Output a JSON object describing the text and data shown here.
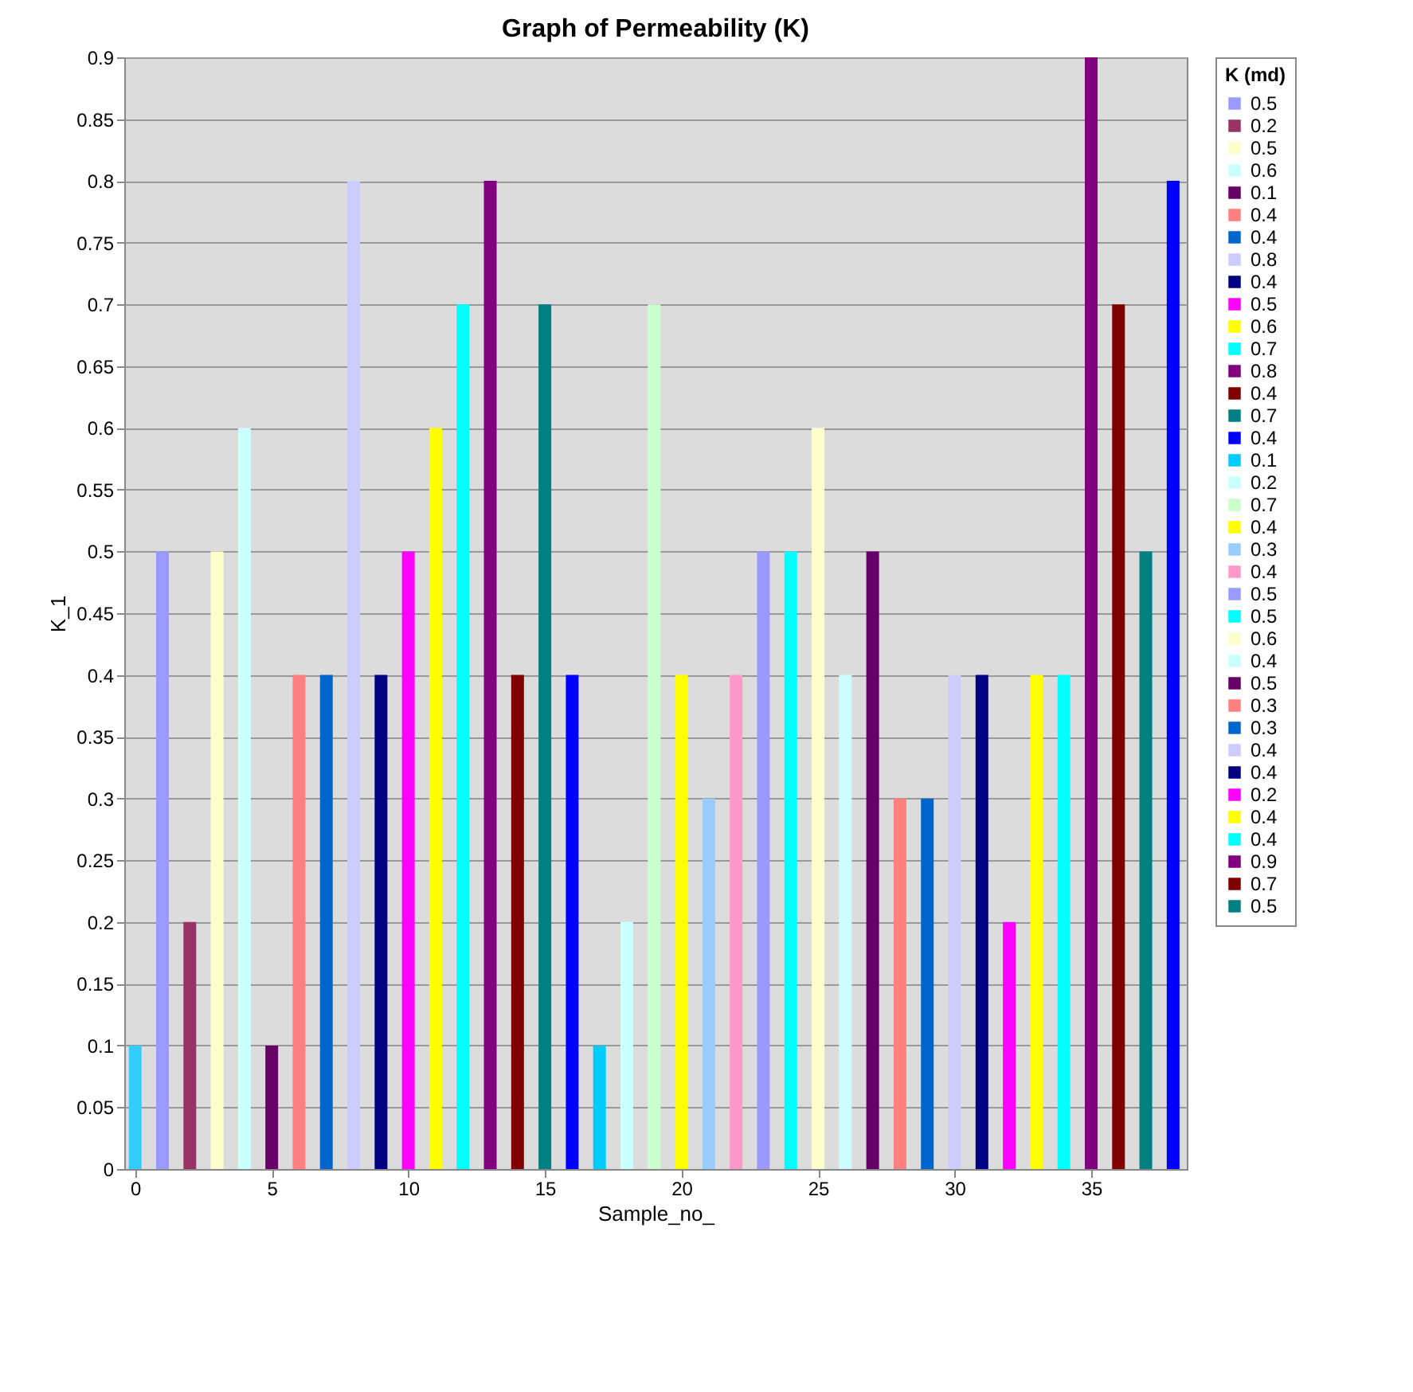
{
  "chart_data": {
    "type": "bar",
    "title": "Graph of Permeability (K)",
    "xlabel": "Sample_no_",
    "ylabel": "K_1",
    "legend_title": "K (md)",
    "legend": "right",
    "grid": "y",
    "xlim": [
      -0.4,
      38.5
    ],
    "xticks": [
      0,
      5,
      10,
      15,
      20,
      25,
      30,
      35
    ],
    "ylim": [
      0,
      0.9
    ],
    "yticks": [
      0,
      0.05,
      0.1,
      0.15,
      0.2,
      0.25,
      0.3,
      0.35,
      0.4,
      0.45,
      0.5,
      0.55,
      0.6,
      0.65,
      0.7,
      0.75,
      0.8,
      0.85,
      0.9
    ],
    "series": [
      {
        "color": "#33ccff",
        "x": [
          0
        ],
        "values": [
          0.1
        ]
      },
      {
        "name": "0.5",
        "color": "#9999ff",
        "x": [
          1
        ],
        "values": [
          0.5
        ]
      },
      {
        "name": "0.2",
        "color": "#993366",
        "x": [
          2
        ],
        "values": [
          0.2
        ]
      },
      {
        "name": "0.5",
        "color": "#ffffcc",
        "x": [
          3
        ],
        "values": [
          0.5
        ]
      },
      {
        "name": "0.6",
        "color": "#ccffff",
        "x": [
          4
        ],
        "values": [
          0.6
        ]
      },
      {
        "name": "0.1",
        "color": "#660066",
        "x": [
          5
        ],
        "values": [
          0.1
        ]
      },
      {
        "name": "0.4",
        "color": "#ff8080",
        "x": [
          6
        ],
        "values": [
          0.4
        ]
      },
      {
        "name": "0.4",
        "color": "#0066cc",
        "x": [
          7
        ],
        "values": [
          0.4
        ]
      },
      {
        "name": "0.8",
        "color": "#ccccff",
        "x": [
          8
        ],
        "values": [
          0.8
        ]
      },
      {
        "name": "0.4",
        "color": "#000080",
        "x": [
          9
        ],
        "values": [
          0.4
        ]
      },
      {
        "name": "0.5",
        "color": "#ff00ff",
        "x": [
          10
        ],
        "values": [
          0.5
        ]
      },
      {
        "name": "0.6",
        "color": "#ffff00",
        "x": [
          11
        ],
        "values": [
          0.6
        ]
      },
      {
        "name": "0.7",
        "color": "#00ffff",
        "x": [
          12
        ],
        "values": [
          0.7
        ]
      },
      {
        "name": "0.8",
        "color": "#800080",
        "x": [
          13
        ],
        "values": [
          0.8
        ]
      },
      {
        "name": "0.4",
        "color": "#800000",
        "x": [
          14
        ],
        "values": [
          0.4
        ]
      },
      {
        "name": "0.7",
        "color": "#008080",
        "x": [
          15
        ],
        "values": [
          0.7
        ]
      },
      {
        "name": "0.4",
        "color": "#0000ff",
        "x": [
          16
        ],
        "values": [
          0.4
        ]
      },
      {
        "name": "0.1",
        "color": "#00ccff",
        "x": [
          17
        ],
        "values": [
          0.1
        ]
      },
      {
        "name": "0.2",
        "color": "#ccffff",
        "x": [
          18
        ],
        "values": [
          0.2
        ]
      },
      {
        "name": "0.7",
        "color": "#ccffcc",
        "x": [
          19
        ],
        "values": [
          0.7
        ]
      },
      {
        "name": "0.4",
        "color": "#ffff00",
        "x": [
          20
        ],
        "values": [
          0.4
        ]
      },
      {
        "name": "0.3",
        "color": "#99ccff",
        "x": [
          21
        ],
        "values": [
          0.3
        ]
      },
      {
        "name": "0.4",
        "color": "#ff99cc",
        "x": [
          22
        ],
        "values": [
          0.4
        ]
      },
      {
        "name": "0.5",
        "color": "#9999ff",
        "x": [
          23
        ],
        "values": [
          0.5
        ]
      },
      {
        "name": "0.5",
        "color": "#00ffff",
        "x": [
          24
        ],
        "values": [
          0.5
        ]
      },
      {
        "name": "0.6",
        "color": "#ffffcc",
        "x": [
          25
        ],
        "values": [
          0.6
        ]
      },
      {
        "name": "0.4",
        "color": "#ccffff",
        "x": [
          26
        ],
        "values": [
          0.4
        ]
      },
      {
        "name": "0.5",
        "color": "#660066",
        "x": [
          27
        ],
        "values": [
          0.5
        ]
      },
      {
        "name": "0.3",
        "color": "#ff8080",
        "x": [
          28
        ],
        "values": [
          0.3
        ]
      },
      {
        "name": "0.3",
        "color": "#0066cc",
        "x": [
          29
        ],
        "values": [
          0.3
        ]
      },
      {
        "name": "0.4",
        "color": "#ccccff",
        "x": [
          30
        ],
        "values": [
          0.4
        ]
      },
      {
        "name": "0.4",
        "color": "#000080",
        "x": [
          31
        ],
        "values": [
          0.4
        ]
      },
      {
        "name": "0.2",
        "color": "#ff00ff",
        "x": [
          32
        ],
        "values": [
          0.2
        ]
      },
      {
        "name": "0.4",
        "color": "#ffff00",
        "x": [
          33
        ],
        "values": [
          0.4
        ]
      },
      {
        "name": "0.4",
        "color": "#00ffff",
        "x": [
          34
        ],
        "values": [
          0.4
        ]
      },
      {
        "name": "0.9",
        "color": "#800080",
        "x": [
          35
        ],
        "values": [
          0.9
        ]
      },
      {
        "name": "0.7",
        "color": "#800000",
        "x": [
          36
        ],
        "values": [
          0.7
        ]
      },
      {
        "name": "0.5",
        "color": "#008080",
        "x": [
          37
        ],
        "values": [
          0.5
        ]
      },
      {
        "color": "#0000ff",
        "x": [
          38
        ],
        "values": [
          0.8
        ]
      }
    ]
  }
}
